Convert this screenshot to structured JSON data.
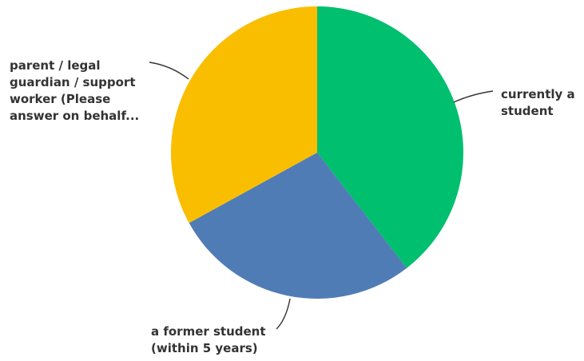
{
  "chart_data": {
    "type": "pie",
    "title": "",
    "slices": [
      {
        "label_lines": [
          "currently a",
          "student"
        ],
        "value": 39.5,
        "color": "#00BF6F"
      },
      {
        "label_lines": [
          "a former student",
          "(within 5 years)"
        ],
        "value": 27.5,
        "color": "#507CB6"
      },
      {
        "label_lines": [
          "parent / legal",
          "guardian / support",
          "worker (Please",
          "answer on behalf..."
        ],
        "value": 33.0,
        "color": "#F9BE00"
      }
    ],
    "start_angle": "12 o'clock",
    "direction": "clockwise",
    "legend": "none (direct labels with leader lines)"
  }
}
